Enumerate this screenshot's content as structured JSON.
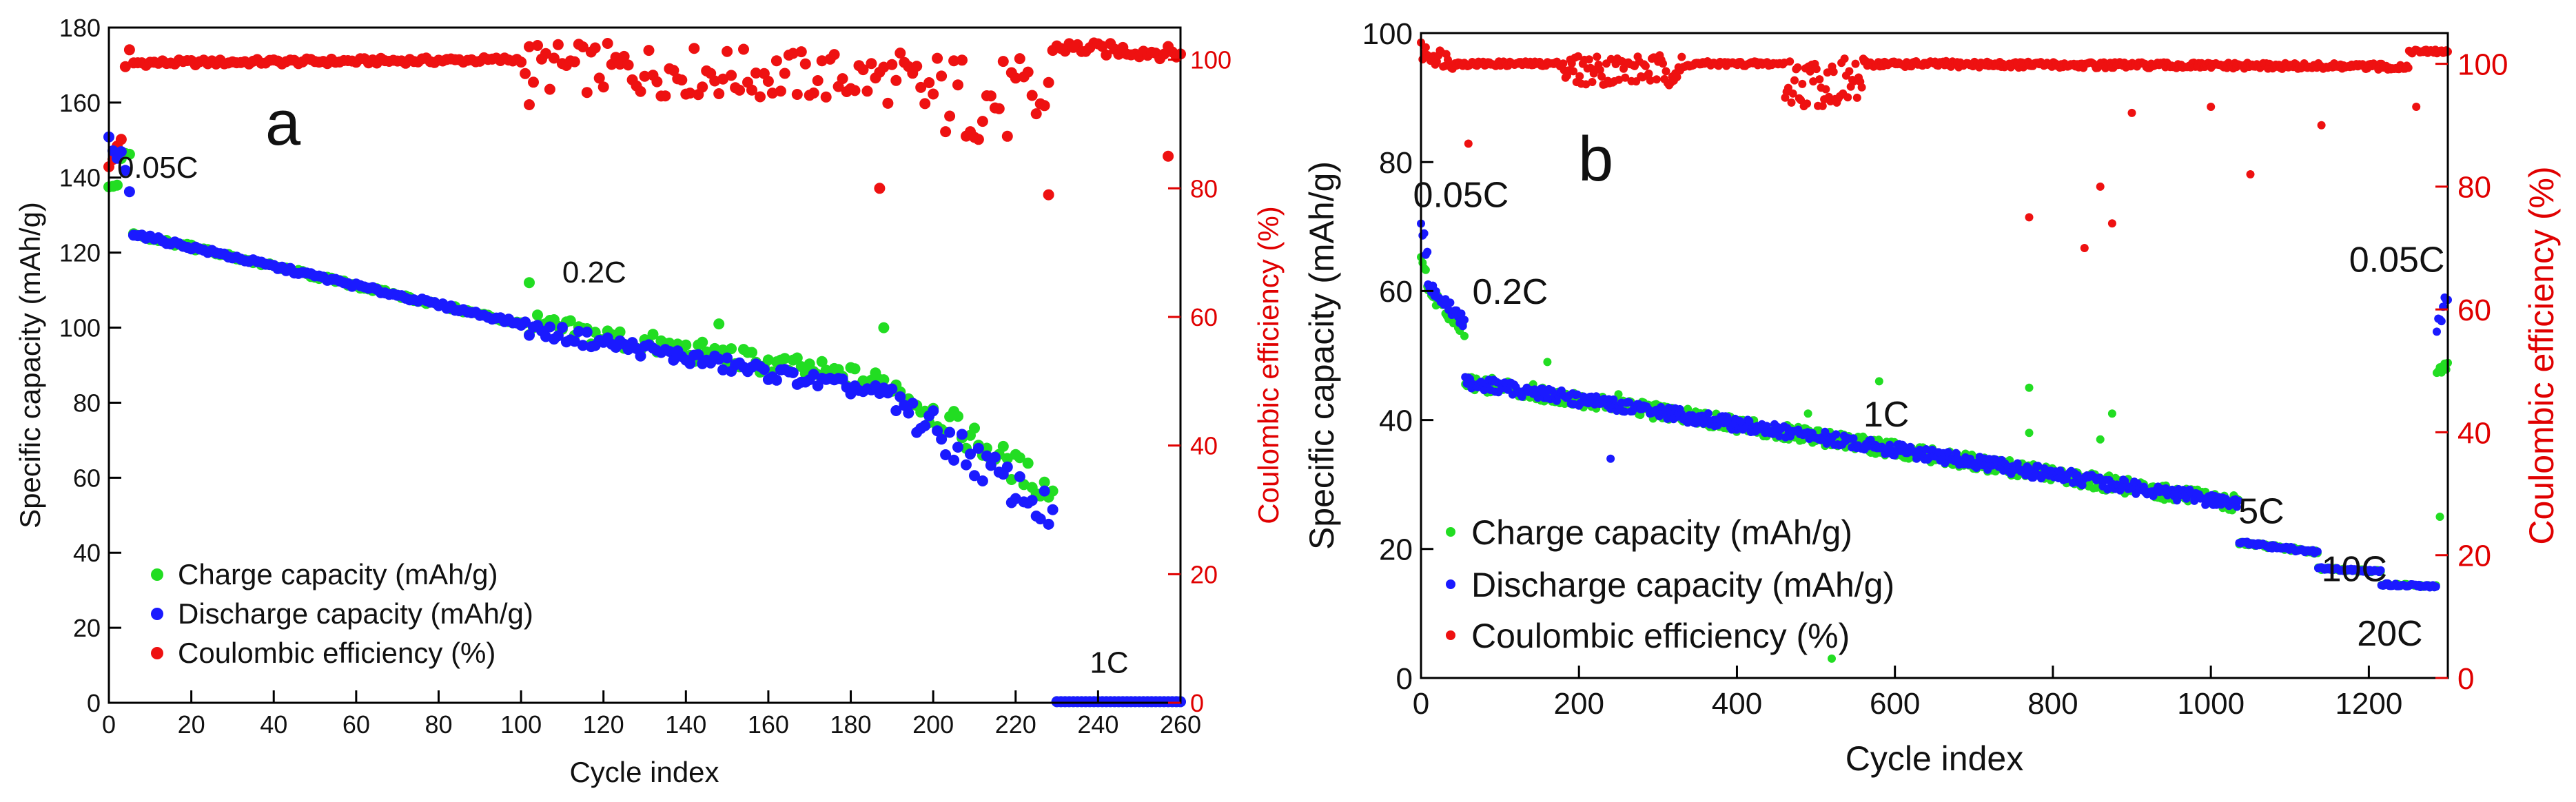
{
  "chart_data": [
    {
      "panel": "a",
      "type": "scatter",
      "title": "a",
      "xlabel": "Cycle index",
      "ylabel": "Specific capacity (mAh/g)",
      "y2label": "Coulombic efficiency (%)",
      "xlim": [
        0,
        260
      ],
      "ylim": [
        0,
        180
      ],
      "y2lim": [
        0,
        105
      ],
      "xticks": [
        0,
        20,
        40,
        60,
        80,
        100,
        120,
        140,
        160,
        180,
        200,
        220,
        240,
        260
      ],
      "yticks": [
        0,
        20,
        40,
        60,
        80,
        100,
        120,
        140,
        160,
        180
      ],
      "y2ticks": [
        0,
        20,
        40,
        60,
        80,
        100
      ],
      "legend_position": "lower-left",
      "legend": [
        "Charge capacity (mAh/g)",
        "Discharge capacity (mAh/g)",
        "Coulombic efficiency (%)"
      ],
      "annotations": [
        {
          "text": "0.05C",
          "x": 2,
          "y": 140
        },
        {
          "text": "0.2C",
          "x": 110,
          "y": 112
        },
        {
          "text": "1C",
          "x": 238,
          "y": 8
        }
      ],
      "colors": {
        "charge": "#22dd22",
        "discharge": "#1a1aff",
        "ce": "#ee1111"
      },
      "segments": [
        {
          "series": "charge",
          "from": 0,
          "to": 5,
          "y_start": 136,
          "y_end": 148,
          "noise": 4
        },
        {
          "series": "discharge",
          "from": 0,
          "to": 5,
          "y_start": 150,
          "y_end": 140,
          "noise": 4
        },
        {
          "series": "charge",
          "from": 6,
          "to": 100,
          "y_start": 125,
          "y_end": 101,
          "noise": 0.5
        },
        {
          "series": "discharge",
          "from": 6,
          "to": 100,
          "y_start": 125,
          "y_end": 101,
          "noise": 0.5
        },
        {
          "series": "charge",
          "from": 101,
          "to": 190,
          "y_start": 101,
          "y_end": 85,
          "noise": 3
        },
        {
          "series": "discharge",
          "from": 101,
          "to": 190,
          "y_start": 100,
          "y_end": 82,
          "noise": 2
        },
        {
          "series": "charge",
          "from": 191,
          "to": 229,
          "y_start": 84,
          "y_end": 56,
          "noise": 4
        },
        {
          "series": "discharge",
          "from": 191,
          "to": 229,
          "y_start": 80,
          "y_end": 50,
          "noise": 5
        },
        {
          "series": "charge",
          "from": 230,
          "to": 260,
          "y_start": 0.3,
          "y_end": 0.3,
          "noise": 0
        },
        {
          "series": "discharge",
          "from": 230,
          "to": 260,
          "y_start": 0.3,
          "y_end": 0.3,
          "noise": 0
        },
        {
          "series": "ce",
          "from": 0,
          "to": 5,
          "y_start": 80,
          "y_end": 98,
          "noise": 7
        },
        {
          "series": "ce",
          "from": 6,
          "to": 100,
          "y_start": 99.5,
          "y_end": 100,
          "noise": 0.4
        },
        {
          "series": "ce",
          "from": 101,
          "to": 190,
          "y_start": 99,
          "y_end": 97,
          "noise": 4
        },
        {
          "series": "ce",
          "from": 191,
          "to": 228,
          "y_start": 95,
          "y_end": 93,
          "noise": 7
        },
        {
          "series": "ce",
          "from": 229,
          "to": 260,
          "y_start": 102,
          "y_end": 101,
          "noise": 1
        }
      ],
      "outliers": [
        {
          "series": "ce",
          "x": 102,
          "y": 93
        },
        {
          "series": "ce",
          "x": 228,
          "y": 79
        },
        {
          "series": "ce",
          "x": 257,
          "y": 85
        },
        {
          "series": "ce",
          "x": 187,
          "y": 80
        },
        {
          "series": "charge",
          "x": 102,
          "y": 112
        },
        {
          "series": "charge",
          "x": 148,
          "y": 101
        },
        {
          "series": "charge",
          "x": 188,
          "y": 100
        },
        {
          "series": "charge",
          "x": 20,
          "y": 122
        }
      ]
    },
    {
      "panel": "b",
      "type": "scatter",
      "title": "b",
      "xlabel": "Cycle index",
      "ylabel": "Specific capacity (mAh/g)",
      "y2label": "Coulombic efficiency (%)",
      "xlim": [
        0,
        1300
      ],
      "ylim": [
        0,
        100
      ],
      "y2lim": [
        0,
        105
      ],
      "xticks": [
        0,
        200,
        400,
        600,
        800,
        1000,
        1200
      ],
      "yticks": [
        0,
        20,
        40,
        60,
        80,
        100
      ],
      "y2ticks": [
        0,
        20,
        40,
        60,
        80,
        100
      ],
      "legend_position": "lower-left",
      "legend": [
        "Charge capacity (mAh/g)",
        "Discharge capacity (mAh/g)",
        "Coulombic efficiency (%)"
      ],
      "annotations": [
        {
          "text": "0.05C",
          "x": -10,
          "y": 73
        },
        {
          "text": "0.2C",
          "x": 65,
          "y": 58
        },
        {
          "text": "1C",
          "x": 560,
          "y": 39
        },
        {
          "text": "5C",
          "x": 1035,
          "y": 24
        },
        {
          "text": "10C",
          "x": 1140,
          "y": 15
        },
        {
          "text": "20C",
          "x": 1185,
          "y": 5
        },
        {
          "text": "0.05C",
          "x": 1175,
          "y": 63
        }
      ],
      "colors": {
        "charge": "#22dd22",
        "discharge": "#1a1aff",
        "ce": "#ee1111"
      },
      "segments": [
        {
          "series": "charge",
          "from": 0,
          "to": 8,
          "y_start": 65,
          "y_end": 62,
          "noise": 2
        },
        {
          "series": "discharge",
          "from": 0,
          "to": 8,
          "y_start": 72,
          "y_end": 66,
          "noise": 2
        },
        {
          "series": "charge",
          "from": 9,
          "to": 55,
          "y_start": 60,
          "y_end": 54,
          "noise": 1
        },
        {
          "series": "discharge",
          "from": 9,
          "to": 55,
          "y_start": 61,
          "y_end": 55,
          "noise": 1
        },
        {
          "series": "charge",
          "from": 56,
          "to": 1035,
          "y_start": 46,
          "y_end": 27,
          "noise": 1.2
        },
        {
          "series": "discharge",
          "from": 56,
          "to": 1035,
          "y_start": 46,
          "y_end": 27,
          "noise": 1
        },
        {
          "series": "charge",
          "from": 1036,
          "to": 1135,
          "y_start": 21,
          "y_end": 19.5,
          "noise": 0.3
        },
        {
          "series": "discharge",
          "from": 1036,
          "to": 1135,
          "y_start": 21,
          "y_end": 19.5,
          "noise": 0.3
        },
        {
          "series": "charge",
          "from": 1136,
          "to": 1215,
          "y_start": 17,
          "y_end": 16.5,
          "noise": 0.2
        },
        {
          "series": "discharge",
          "from": 1136,
          "to": 1215,
          "y_start": 17,
          "y_end": 16.5,
          "noise": 0.2
        },
        {
          "series": "charge",
          "from": 1216,
          "to": 1285,
          "y_start": 14.5,
          "y_end": 14.2,
          "noise": 0.2
        },
        {
          "series": "discharge",
          "from": 1216,
          "to": 1285,
          "y_start": 14.5,
          "y_end": 14.2,
          "noise": 0.2
        },
        {
          "series": "charge",
          "from": 1286,
          "to": 1300,
          "y_start": 48,
          "y_end": 48,
          "noise": 1
        },
        {
          "series": "discharge",
          "from": 1286,
          "to": 1300,
          "y_start": 55,
          "y_end": 59,
          "noise": 1.5
        },
        {
          "series": "ce",
          "from": 0,
          "to": 40,
          "y_start": 102,
          "y_end": 100.5,
          "noise": 1.5
        },
        {
          "series": "ce",
          "from": 41,
          "to": 180,
          "y_start": 100,
          "y_end": 100,
          "noise": 0.4
        },
        {
          "series": "ce",
          "from": 181,
          "to": 340,
          "y_start": 99,
          "y_end": 99,
          "noise": 2.5
        },
        {
          "series": "ce",
          "from": 341,
          "to": 460,
          "y_start": 100,
          "y_end": 100,
          "noise": 0.4
        },
        {
          "series": "ce",
          "from": 461,
          "to": 560,
          "y_start": 97,
          "y_end": 97,
          "noise": 4
        },
        {
          "series": "ce",
          "from": 561,
          "to": 1250,
          "y_start": 100,
          "y_end": 99.5,
          "noise": 0.5
        },
        {
          "series": "ce",
          "from": 1251,
          "to": 1300,
          "y_start": 102,
          "y_end": 102,
          "noise": 0.3
        }
      ],
      "outliers": [
        {
          "series": "ce",
          "x": 60,
          "y": 87
        },
        {
          "series": "ce",
          "x": 770,
          "y": 75
        },
        {
          "series": "ce",
          "x": 840,
          "y": 70
        },
        {
          "series": "ce",
          "x": 860,
          "y": 80
        },
        {
          "series": "ce",
          "x": 875,
          "y": 74
        },
        {
          "series": "ce",
          "x": 1050,
          "y": 82
        },
        {
          "series": "ce",
          "x": 1140,
          "y": 90
        },
        {
          "series": "ce",
          "x": 1260,
          "y": 93
        },
        {
          "series": "ce",
          "x": 900,
          "y": 92
        },
        {
          "series": "ce",
          "x": 1000,
          "y": 93
        },
        {
          "series": "charge",
          "x": 160,
          "y": 49
        },
        {
          "series": "charge",
          "x": 580,
          "y": 46
        },
        {
          "series": "charge",
          "x": 770,
          "y": 45
        },
        {
          "series": "charge",
          "x": 770,
          "y": 38
        },
        {
          "series": "charge",
          "x": 860,
          "y": 37
        },
        {
          "series": "charge",
          "x": 875,
          "y": 41
        },
        {
          "series": "charge",
          "x": 520,
          "y": 3
        },
        {
          "series": "charge",
          "x": 250,
          "y": 44
        },
        {
          "series": "charge",
          "x": 490,
          "y": 41
        },
        {
          "series": "charge",
          "x": 1290,
          "y": 25
        },
        {
          "series": "discharge",
          "x": 240,
          "y": 34
        }
      ]
    }
  ]
}
